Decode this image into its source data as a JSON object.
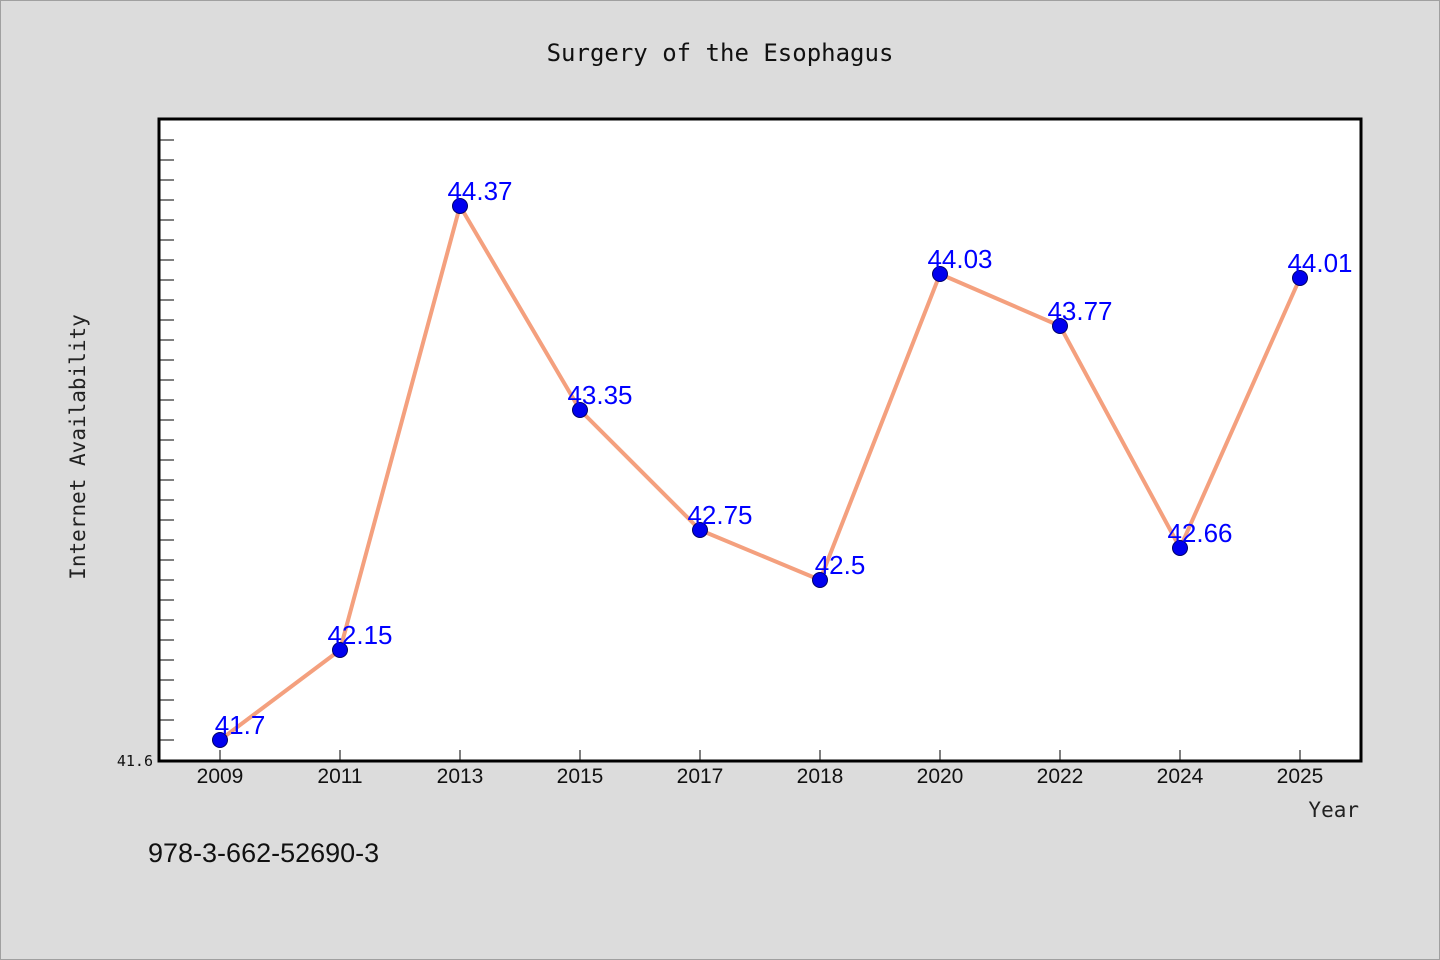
{
  "chart_data": {
    "type": "line",
    "title": "Surgery of the Esophagus",
    "xlabel": "Year",
    "ylabel": "Internet Availability",
    "categories": [
      "2009",
      "2011",
      "2013",
      "2015",
      "2017",
      "2018",
      "2020",
      "2022",
      "2024",
      "2025"
    ],
    "series": [
      {
        "values": [
          41.7,
          42.15,
          44.37,
          43.35,
          42.75,
          42.5,
          44.03,
          43.77,
          42.66,
          44.01
        ],
        "labels": [
          "41.7",
          "42.15",
          "44.37",
          "43.35",
          "42.75",
          "42.5",
          "44.03",
          "43.77",
          "42.66",
          "44.01"
        ]
      }
    ],
    "ylim": [
      41.6,
      44.8
    ],
    "y_tick_label": "41.6",
    "y_minor_tick_step": 0.1,
    "grid": false,
    "legend": "none",
    "colors": {
      "line": "#f4a07e",
      "marker": "#0000ee",
      "marker_edge": "#000066",
      "data_label": "#0000ff",
      "background": "#dcdcdc",
      "plot_background": "#ffffff"
    }
  },
  "footer_text": "978-3-662-52690-3"
}
